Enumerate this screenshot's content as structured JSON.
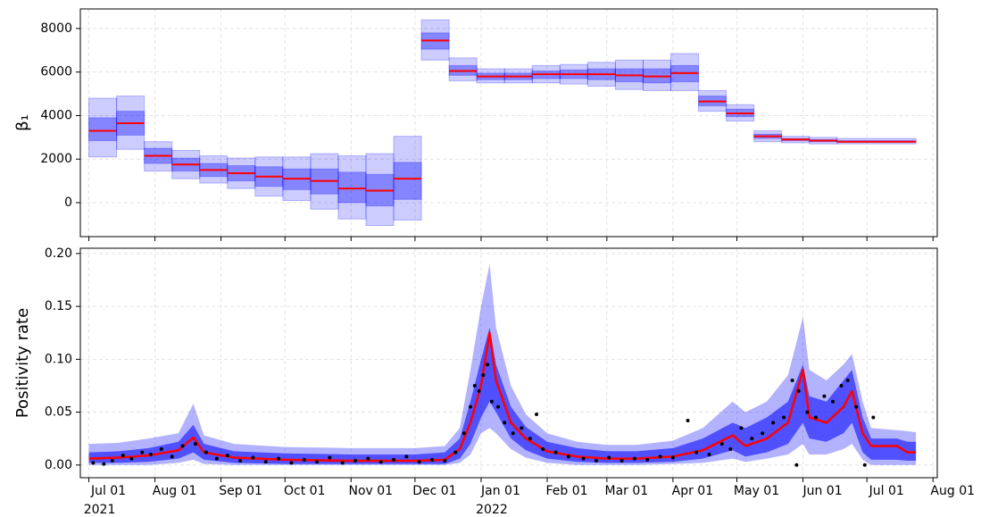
{
  "chart_data": [
    {
      "type": "step-band",
      "ylabel": "β₁",
      "x_edges": [
        "2021-07-01",
        "2021-07-14",
        "2021-07-27",
        "2021-08-09",
        "2021-08-22",
        "2021-09-04",
        "2021-09-17",
        "2021-09-30",
        "2021-10-13",
        "2021-10-26",
        "2021-11-08",
        "2021-11-21",
        "2021-12-04",
        "2021-12-17",
        "2021-12-30",
        "2022-01-12",
        "2022-01-25",
        "2022-02-07",
        "2022-02-20",
        "2022-03-05",
        "2022-03-18",
        "2022-03-31",
        "2022-04-13",
        "2022-04-26",
        "2022-05-09",
        "2022-05-22",
        "2022-06-04",
        "2022-06-17",
        "2022-07-24"
      ],
      "median": [
        3300,
        3650,
        2150,
        1750,
        1500,
        1350,
        1200,
        1100,
        1000,
        650,
        550,
        1100,
        7450,
        6050,
        5800,
        5800,
        5900,
        5900,
        5900,
        5850,
        5800,
        5950,
        4650,
        4100,
        3050,
        2900,
        2850,
        2800
      ],
      "inner_low": [
        2850,
        3100,
        1800,
        1450,
        1200,
        1000,
        750,
        600,
        400,
        0,
        -150,
        150,
        7050,
        5850,
        5650,
        5650,
        5700,
        5700,
        5650,
        5550,
        5500,
        5550,
        4450,
        3950,
        2950,
        2850,
        2800,
        2780
      ],
      "inner_high": [
        3900,
        4200,
        2500,
        2050,
        1800,
        1700,
        1650,
        1550,
        1550,
        1400,
        1300,
        1850,
        7800,
        6300,
        5950,
        5950,
        6050,
        6100,
        6150,
        6150,
        6150,
        6300,
        4900,
        4300,
        3150,
        2950,
        2900,
        2850
      ],
      "outer_low": [
        2100,
        2450,
        1450,
        1100,
        900,
        650,
        300,
        100,
        -300,
        -750,
        -1050,
        -800,
        6550,
        5600,
        5500,
        5500,
        5500,
        5450,
        5350,
        5200,
        5150,
        5150,
        4200,
        3750,
        2800,
        2750,
        2700,
        2700
      ],
      "outer_high": [
        4800,
        4900,
        2800,
        2400,
        2150,
        2050,
        2100,
        2100,
        2250,
        2150,
        2250,
        3050,
        8400,
        6650,
        6150,
        6150,
        6300,
        6350,
        6450,
        6550,
        6550,
        6850,
        5150,
        4500,
        3300,
        3050,
        3000,
        2950
      ],
      "band_color": "#0000ff",
      "line_color": "#ff0000",
      "xlim": [
        "2021-06-27",
        "2022-08-03"
      ],
      "xticks": [
        "2021-07-01",
        "2021-08-01",
        "2021-09-01",
        "2021-10-01",
        "2021-11-01",
        "2021-12-01",
        "2022-01-01",
        "2022-02-01",
        "2022-03-01",
        "2022-04-01",
        "2022-05-01",
        "2022-06-01",
        "2022-07-01",
        "2022-08-01"
      ],
      "ylim": [
        -1560,
        8900
      ],
      "yticks": [
        0,
        2000,
        4000,
        6000,
        8000
      ],
      "grid": true
    },
    {
      "type": "band-line",
      "ylabel": "Positivity rate",
      "x": [
        "2021-07-01",
        "2021-07-15",
        "2021-07-29",
        "2021-08-12",
        "2021-08-19",
        "2021-08-24",
        "2021-09-07",
        "2021-10-01",
        "2021-11-01",
        "2021-12-01",
        "2021-12-15",
        "2021-12-22",
        "2021-12-27",
        "2022-01-01",
        "2022-01-05",
        "2022-01-08",
        "2022-01-15",
        "2022-01-22",
        "2022-02-01",
        "2022-02-15",
        "2022-03-01",
        "2022-03-15",
        "2022-04-01",
        "2022-04-15",
        "2022-04-29",
        "2022-05-05",
        "2022-05-15",
        "2022-05-25",
        "2022-06-01",
        "2022-06-04",
        "2022-06-12",
        "2022-06-20",
        "2022-06-24",
        "2022-06-29",
        "2022-07-03",
        "2022-07-15",
        "2022-07-20",
        "2022-07-24"
      ],
      "median": [
        0.006,
        0.007,
        0.009,
        0.014,
        0.026,
        0.012,
        0.007,
        0.005,
        0.004,
        0.004,
        0.005,
        0.015,
        0.04,
        0.075,
        0.125,
        0.08,
        0.04,
        0.025,
        0.013,
        0.008,
        0.006,
        0.006,
        0.008,
        0.014,
        0.028,
        0.018,
        0.025,
        0.04,
        0.09,
        0.045,
        0.04,
        0.055,
        0.07,
        0.03,
        0.018,
        0.018,
        0.012,
        0.012
      ],
      "inner_low": [
        0.002,
        0.002,
        0.003,
        0.006,
        0.012,
        0.005,
        0.002,
        0.001,
        0.001,
        0.001,
        0.001,
        0.006,
        0.02,
        0.045,
        0.06,
        0.05,
        0.025,
        0.014,
        0.006,
        0.003,
        0.002,
        0.002,
        0.003,
        0.006,
        0.014,
        0.008,
        0.012,
        0.02,
        0.04,
        0.025,
        0.022,
        0.03,
        0.04,
        0.012,
        0.005,
        0.005,
        0.004,
        0.004
      ],
      "inner_high": [
        0.012,
        0.013,
        0.016,
        0.022,
        0.038,
        0.02,
        0.013,
        0.011,
        0.01,
        0.01,
        0.012,
        0.025,
        0.06,
        0.1,
        0.13,
        0.095,
        0.055,
        0.036,
        0.022,
        0.016,
        0.013,
        0.013,
        0.016,
        0.025,
        0.04,
        0.035,
        0.045,
        0.06,
        0.095,
        0.065,
        0.06,
        0.08,
        0.09,
        0.045,
        0.025,
        0.025,
        0.022,
        0.022
      ],
      "outer_low": [
        0,
        0,
        0,
        0.002,
        0.005,
        0.001,
        0,
        0,
        0,
        0,
        0,
        0.002,
        0.01,
        0.03,
        0.035,
        0.03,
        0.015,
        0.007,
        0.002,
        0,
        0,
        0,
        0.001,
        0.002,
        0.006,
        0.003,
        0.006,
        0.01,
        0.02,
        0.01,
        0.01,
        0.015,
        0.02,
        0.005,
        0,
        0,
        0,
        0
      ],
      "outer_high": [
        0.02,
        0.021,
        0.025,
        0.03,
        0.058,
        0.028,
        0.02,
        0.017,
        0.016,
        0.016,
        0.018,
        0.035,
        0.09,
        0.15,
        0.19,
        0.13,
        0.075,
        0.048,
        0.03,
        0.022,
        0.019,
        0.019,
        0.023,
        0.035,
        0.06,
        0.05,
        0.06,
        0.085,
        0.14,
        0.09,
        0.08,
        0.095,
        0.105,
        0.06,
        0.035,
        0.033,
        0.032,
        0.031
      ],
      "points": {
        "x": [
          "2021-07-03",
          "2021-07-08",
          "2021-07-12",
          "2021-07-17",
          "2021-07-21",
          "2021-07-26",
          "2021-07-30",
          "2021-08-04",
          "2021-08-09",
          "2021-08-14",
          "2021-08-20",
          "2021-08-25",
          "2021-08-30",
          "2021-09-04",
          "2021-09-10",
          "2021-09-16",
          "2021-09-22",
          "2021-09-28",
          "2021-10-04",
          "2021-10-10",
          "2021-10-16",
          "2021-10-22",
          "2021-10-28",
          "2021-11-03",
          "2021-11-09",
          "2021-11-15",
          "2021-11-21",
          "2021-11-27",
          "2021-12-03",
          "2021-12-09",
          "2021-12-15",
          "2021-12-20",
          "2021-12-24",
          "2021-12-27",
          "2021-12-29",
          "2021-12-31",
          "2022-01-02",
          "2022-01-04",
          "2022-01-06",
          "2022-01-09",
          "2022-01-12",
          "2022-01-16",
          "2022-01-20",
          "2022-01-24",
          "2022-01-27",
          "2022-01-30",
          "2022-02-05",
          "2022-02-11",
          "2022-02-18",
          "2022-02-24",
          "2022-03-02",
          "2022-03-08",
          "2022-03-14",
          "2022-03-20",
          "2022-03-26",
          "2022-04-01",
          "2022-04-08",
          "2022-04-12",
          "2022-04-18",
          "2022-04-24",
          "2022-04-28",
          "2022-05-03",
          "2022-05-08",
          "2022-05-13",
          "2022-05-18",
          "2022-05-23",
          "2022-05-27",
          "2022-05-29",
          "2022-05-30",
          "2022-06-03",
          "2022-06-07",
          "2022-06-11",
          "2022-06-15",
          "2022-06-19",
          "2022-06-22",
          "2022-06-26",
          "2022-06-30",
          "2022-07-04"
        ],
        "values": [
          0.002,
          0.001,
          0.004,
          0.009,
          0.006,
          0.012,
          0.01,
          0.015,
          0.008,
          0.018,
          0.02,
          0.012,
          0.006,
          0.009,
          0.004,
          0.007,
          0.003,
          0.006,
          0.002,
          0.005,
          0.003,
          0.007,
          0.002,
          0.004,
          0.006,
          0.003,
          0.005,
          0.008,
          0.003,
          0.005,
          0.004,
          0.012,
          0.03,
          0.055,
          0.075,
          0.07,
          0.085,
          0.095,
          0.06,
          0.055,
          0.04,
          0.03,
          0.035,
          0.025,
          0.048,
          0.015,
          0.012,
          0.008,
          0.006,
          0.004,
          0.007,
          0.004,
          0.006,
          0.005,
          0.008,
          0.007,
          0.042,
          0.012,
          0.01,
          0.02,
          0.015,
          0.035,
          0.025,
          0.03,
          0.04,
          0.045,
          0.08,
          0.0,
          0.07,
          0.05,
          0.045,
          0.065,
          0.06,
          0.075,
          0.08,
          0.055,
          0.0,
          0.045
        ],
        "color": "#000000"
      },
      "band_color": "#0000ff",
      "line_color": "#ff0000",
      "xlim": [
        "2021-06-27",
        "2022-08-03"
      ],
      "xticks": [
        {
          "value": "2021-07-01",
          "label": "Jul 01",
          "year": "2021"
        },
        {
          "value": "2021-08-01",
          "label": "Aug 01"
        },
        {
          "value": "2021-09-01",
          "label": "Sep 01"
        },
        {
          "value": "2021-10-01",
          "label": "Oct 01"
        },
        {
          "value": "2021-11-01",
          "label": "Nov 01"
        },
        {
          "value": "2021-12-01",
          "label": "Dec 01"
        },
        {
          "value": "2022-01-01",
          "label": "Jan 01",
          "year": "2022"
        },
        {
          "value": "2022-02-01",
          "label": "Feb 01"
        },
        {
          "value": "2022-03-01",
          "label": "Mar 01"
        },
        {
          "value": "2022-04-01",
          "label": "Apr 01"
        },
        {
          "value": "2022-05-01",
          "label": "May 01"
        },
        {
          "value": "2022-06-01",
          "label": "Jun 01"
        },
        {
          "value": "2022-07-01",
          "label": "Jul 01"
        },
        {
          "value": "2022-08-01",
          "label": "Aug 01"
        }
      ],
      "ylim": [
        -0.012,
        0.205
      ],
      "yticks": [
        {
          "value": 0,
          "label": "0.00"
        },
        {
          "value": 0.05,
          "label": "0.05"
        },
        {
          "value": 0.1,
          "label": "0.10"
        },
        {
          "value": 0.15,
          "label": "0.15"
        },
        {
          "value": 0.2,
          "label": "0.20"
        }
      ],
      "grid": true
    }
  ]
}
